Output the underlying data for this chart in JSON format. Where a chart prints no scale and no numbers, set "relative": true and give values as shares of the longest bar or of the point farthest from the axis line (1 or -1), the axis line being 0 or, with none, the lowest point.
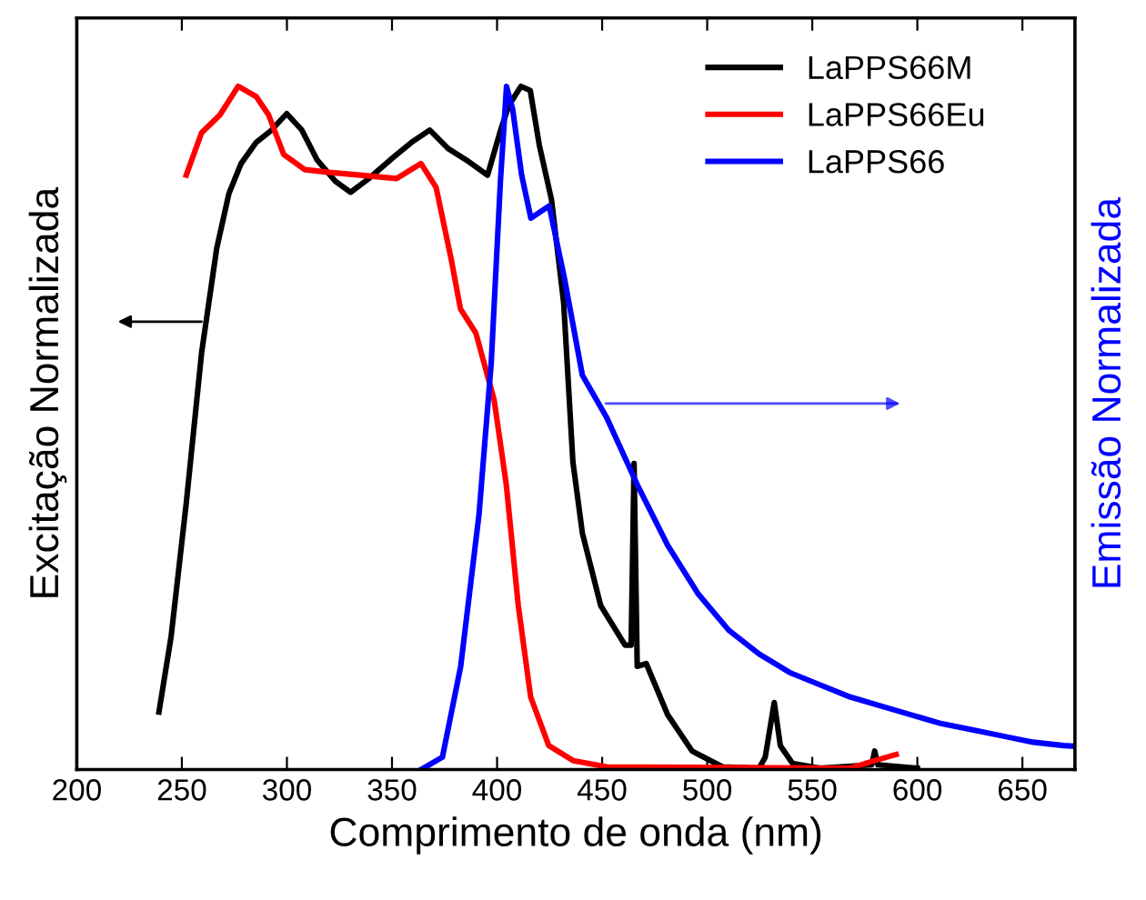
{
  "chart_data": {
    "type": "line",
    "xlabel": "Comprimento de onda (nm)",
    "ylabel": "Excitação Normalizada",
    "y2label": "Emissão Normalizada",
    "relative": true,
    "xlim": [
      200,
      675
    ],
    "xticks": [
      200,
      250,
      300,
      350,
      400,
      450,
      500,
      550,
      600,
      650
    ],
    "tick_labels": "x",
    "legend": "top right",
    "grid": false,
    "marker": "none",
    "line_style": "solid",
    "series": [
      {
        "name": "LaPPS66M",
        "color": "#000000",
        "x": [
          239.1,
          244.9,
          252.1,
          259.4,
          266.6,
          272.4,
          278.2,
          285.4,
          292.7,
          299.9,
          307.1,
          314.4,
          323.1,
          330.3,
          339.0,
          350.6,
          359.3,
          368.0,
          376.7,
          385.4,
          395.5,
          401.3,
          405.6,
          411.4,
          415.8,
          420.1,
          425.9,
          431.7,
          436.1,
          440.6,
          449.3,
          460.9,
          463.8,
          465.2,
          466.7,
          471.0,
          481.2,
          492.8,
          507.3,
          524.7,
          527.6,
          531.9,
          534.8,
          540.6,
          553.6,
          578.3,
          579.7,
          581.2,
          600.0
        ],
        "values": [
          0.084,
          0.195,
          0.39,
          0.61,
          0.763,
          0.843,
          0.887,
          0.918,
          0.936,
          0.96,
          0.936,
          0.892,
          0.861,
          0.845,
          0.865,
          0.896,
          0.918,
          0.936,
          0.909,
          0.892,
          0.87,
          0.932,
          0.972,
          1.0,
          0.994,
          0.914,
          0.834,
          0.683,
          0.45,
          0.346,
          0.24,
          0.182,
          0.182,
          0.448,
          0.151,
          0.155,
          0.08,
          0.027,
          0.004,
          0.002,
          0.018,
          0.098,
          0.035,
          0.009,
          0.002,
          0.007,
          0.027,
          0.007,
          0.002
        ]
      },
      {
        "name": "LaPPS66Eu",
        "color": "#ff0000",
        "x": [
          252.1,
          259.4,
          268.1,
          276.8,
          285.4,
          291.3,
          298.5,
          308.6,
          320.2,
          334.8,
          352.2,
          363.8,
          371.0,
          378.3,
          382.6,
          389.9,
          398.6,
          404.4,
          410.1,
          416.0,
          424.6,
          436.2,
          452.2,
          568.2,
          579.7,
          589.9
        ],
        "values": [
          0.87,
          0.932,
          0.958,
          1.0,
          0.985,
          0.958,
          0.9,
          0.878,
          0.874,
          0.87,
          0.865,
          0.887,
          0.852,
          0.745,
          0.674,
          0.639,
          0.541,
          0.417,
          0.24,
          0.106,
          0.035,
          0.013,
          0.004,
          0.002,
          0.013,
          0.022
        ]
      },
      {
        "name": "LaPPS66",
        "color": "#0000ff",
        "x": [
          363.9,
          374.0,
          382.7,
          391.4,
          397.2,
          401.6,
          404.5,
          407.4,
          411.7,
          416.1,
          424.8,
          432.0,
          440.6,
          452.2,
          466.7,
          481.2,
          495.7,
          510.2,
          524.7,
          539.2,
          553.6,
          568.2,
          582.7,
          597.1,
          611.6,
          626.1,
          640.6,
          655.1,
          669.6,
          675.0
        ],
        "values": [
          0.0,
          0.018,
          0.151,
          0.373,
          0.594,
          0.861,
          1.0,
          0.967,
          0.87,
          0.807,
          0.825,
          0.72,
          0.577,
          0.515,
          0.417,
          0.328,
          0.257,
          0.204,
          0.169,
          0.142,
          0.124,
          0.106,
          0.093,
          0.08,
          0.067,
          0.058,
          0.049,
          0.04,
          0.035,
          0.034
        ]
      }
    ]
  }
}
